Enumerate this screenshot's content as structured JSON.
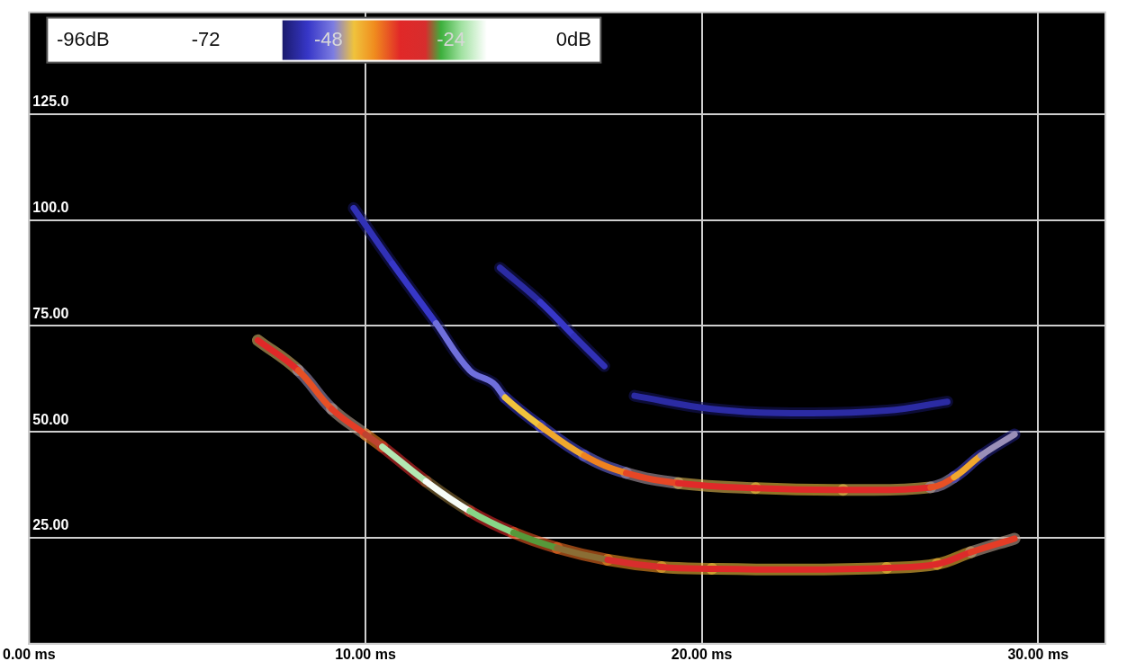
{
  "chart_data": {
    "type": "line",
    "xlim": [
      0,
      32
    ],
    "xticks": [
      {
        "value": 0,
        "label": "0.00 ms"
      },
      {
        "value": 10,
        "label": "10.00 ms"
      },
      {
        "value": 20,
        "label": "20.00 ms"
      },
      {
        "value": 30,
        "label": "30.00 ms"
      }
    ],
    "ylim": [
      0,
      149
    ],
    "yticks": [
      {
        "value": 25,
        "label": "25.00"
      },
      {
        "value": 50,
        "label": "50.00"
      },
      {
        "value": 75,
        "label": "75.00"
      },
      {
        "value": 100,
        "label": "100.0"
      },
      {
        "value": 125,
        "label": "125.0"
      }
    ],
    "grid": true,
    "colorbar": {
      "range": [
        -96,
        0
      ],
      "ticks": [
        {
          "value": -96,
          "label": "-96dB"
        },
        -72,
        -48,
        -24,
        {
          "value": 0,
          "label": "0dB"
        }
      ]
    },
    "series": [
      {
        "x": [
          6.8,
          8.0,
          9.0,
          10.0,
          10.5,
          11.8,
          13.1,
          14.4,
          15.7,
          17.2,
          18.8,
          20.3,
          22.9,
          25.5,
          27.0,
          28.0,
          29.3
        ],
        "values": [
          71.6,
          64.5,
          55.4,
          49.4,
          46.5,
          38.3,
          31.3,
          26.2,
          22.6,
          19.8,
          18.1,
          17.7,
          17.5,
          17.9,
          18.8,
          21.6,
          24.8
        ],
        "levels": [
          -36,
          -32,
          -40,
          -30,
          -27,
          -15,
          -20,
          -26,
          -27,
          -28,
          -31,
          -33,
          -33,
          -33,
          -32,
          -32,
          -38
        ]
      },
      {
        "x": [
          9.65,
          10.8,
          12.1,
          13.1,
          13.8,
          14.15,
          15.2,
          16.5,
          17.75,
          19.3,
          21.6,
          24.2,
          26.8,
          27.5,
          28.3,
          29.3
        ],
        "values": [
          102.8,
          89.7,
          75.6,
          64.5,
          61.5,
          58.1,
          51.4,
          44.4,
          40.3,
          37.9,
          36.7,
          36.3,
          36.9,
          39.3,
          44.4,
          49.4
        ],
        "levels": [
          -54,
          -52,
          -52,
          -44,
          -52,
          -44,
          -42,
          -40,
          -37,
          -34,
          -33,
          -33,
          -34,
          -38,
          -44,
          -48
        ]
      },
      {
        "x": [
          14.0,
          15.2,
          16.2,
          17.1,
          17.6,
          18.0,
          20.3,
          22.9,
          25.5,
          27.3
        ],
        "values": [
          88.7,
          80.6,
          72.6,
          65.5,
          null,
          58.5,
          55.4,
          54.4,
          55.0,
          57.1
        ],
        "levels": [
          -56,
          -52,
          -52,
          -54,
          null,
          -54,
          -54,
          -54,
          -54,
          -54
        ]
      }
    ]
  }
}
